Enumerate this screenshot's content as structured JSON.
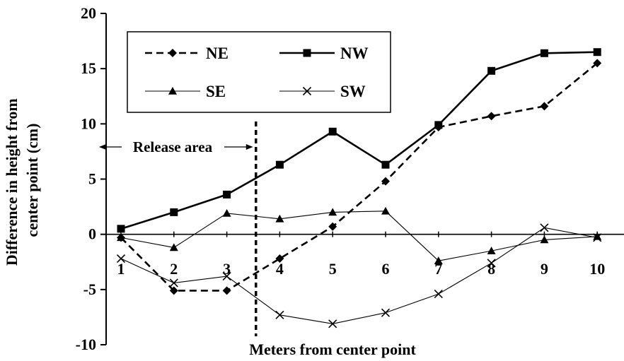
{
  "chart_data": {
    "type": "line",
    "title": "",
    "xlabel": "Meters from center point",
    "ylabel": "Difference in height from center point (cm)",
    "ylabel_lines": [
      "Difference in height from",
      "center point (cm)"
    ],
    "x": [
      1,
      2,
      3,
      4,
      5,
      6,
      7,
      8,
      9,
      10
    ],
    "x_tick_labels": [
      "1",
      "2",
      "3",
      "4",
      "5",
      "6",
      "7",
      "8",
      "9",
      "10"
    ],
    "y_ticks": [
      20,
      15,
      10,
      5,
      0,
      -5,
      -10
    ],
    "y_tick_labels": [
      "20",
      "15",
      "10",
      "5",
      "0",
      "-5",
      "-10"
    ],
    "ylim": [
      -10,
      20
    ],
    "xlim": [
      0.5,
      10.5
    ],
    "grid": false,
    "legend_position": "top-center",
    "series": [
      {
        "name": "NE",
        "style": "dashed",
        "marker": "diamond",
        "values": [
          -0.3,
          -5.1,
          -5.1,
          -2.2,
          0.7,
          4.8,
          9.7,
          10.7,
          11.6,
          15.5
        ]
      },
      {
        "name": "NW",
        "style": "solid",
        "marker": "square",
        "values": [
          0.5,
          2.0,
          3.6,
          6.3,
          9.3,
          6.3,
          9.9,
          14.8,
          16.4,
          16.5
        ]
      },
      {
        "name": "SE",
        "style": "thin",
        "marker": "triangle",
        "values": [
          -0.3,
          -1.2,
          1.9,
          1.4,
          2.0,
          2.1,
          -2.4,
          -1.5,
          -0.5,
          -0.2
        ]
      },
      {
        "name": "SW",
        "style": "thin",
        "marker": "x",
        "values": [
          -2.2,
          -4.4,
          -3.8,
          -7.3,
          -8.1,
          -7.1,
          -5.4,
          -2.6,
          0.6,
          -0.3
        ]
      }
    ],
    "annotations": [
      {
        "text": "Release area",
        "divider_x": 3.55
      }
    ]
  }
}
